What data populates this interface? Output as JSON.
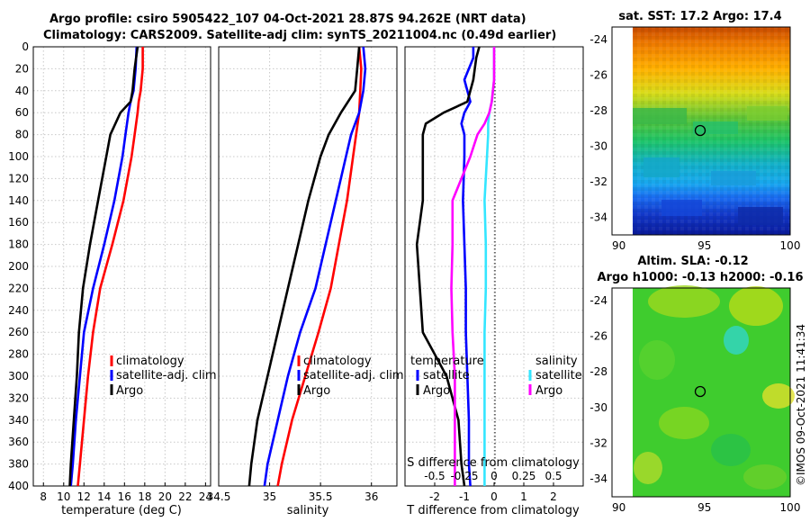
{
  "header": {
    "title_line1": "Argo profile: csiro 5905422_107 04-Oct-2021 28.87S 94.262E (NRT data)",
    "title_line2": "Climatology: CARS2009. Satellite-adj clim: synTS_20211004.nc (0.49d earlier)"
  },
  "watermark": "©IMOS 09-Oct-2021 11:41:34",
  "colors": {
    "climatology": "#ff0000",
    "satellite": "#0000ff",
    "argo": "#000000",
    "salinity_satellite": "#33e6ff",
    "salinity_argo": "#ff00ff"
  },
  "chart_data": [
    {
      "type": "line",
      "panel": "temperature",
      "xlabel": "temperature (deg C)",
      "xlim": [
        7,
        24.5
      ],
      "xticks": [
        "8",
        "10",
        "12",
        "14",
        "16",
        "18",
        "20",
        "22",
        "24"
      ],
      "ylim": [
        0,
        400
      ],
      "yticks": [
        "0",
        "20",
        "40",
        "60",
        "80",
        "100",
        "120",
        "140",
        "160",
        "180",
        "200",
        "220",
        "240",
        "260",
        "280",
        "300",
        "320",
        "340",
        "360",
        "380",
        "400"
      ],
      "depth": [
        0,
        20,
        40,
        50,
        60,
        80,
        100,
        140,
        180,
        220,
        260,
        300,
        340,
        380,
        400
      ],
      "series": [
        {
          "name": "climatology",
          "color": "#ff0000",
          "values": [
            17.8,
            17.8,
            17.6,
            17.4,
            17.3,
            17.0,
            16.7,
            15.9,
            14.8,
            13.6,
            12.9,
            12.4,
            12.0,
            11.6,
            11.4
          ]
        },
        {
          "name": "satellite-adj. clim",
          "color": "#0000ff",
          "values": [
            17.2,
            17.1,
            16.9,
            16.6,
            16.4,
            16.1,
            15.8,
            15.0,
            14.0,
            12.9,
            12.0,
            11.6,
            11.2,
            10.9,
            10.7
          ]
        },
        {
          "name": "Argo",
          "color": "#000000",
          "values": [
            17.3,
            17.0,
            16.8,
            16.6,
            15.6,
            14.6,
            14.2,
            13.4,
            12.6,
            11.9,
            11.5,
            11.3,
            11.0,
            10.7,
            10.6
          ]
        }
      ],
      "legend": [
        "climatology",
        "satellite-adj. clim",
        "Argo"
      ]
    },
    {
      "type": "line",
      "panel": "salinity",
      "xlabel": "salinity",
      "xlim": [
        34.5,
        36.25
      ],
      "xticks": [
        "34.5",
        "35",
        "35.5",
        "36"
      ],
      "depth": [
        0,
        20,
        40,
        60,
        80,
        100,
        140,
        180,
        220,
        260,
        300,
        340,
        380,
        400
      ],
      "series": [
        {
          "name": "climatology",
          "color": "#ff0000",
          "values": [
            35.88,
            35.9,
            35.89,
            35.88,
            35.85,
            35.82,
            35.76,
            35.68,
            35.6,
            35.48,
            35.35,
            35.22,
            35.12,
            35.08
          ]
        },
        {
          "name": "satellite-adj. clim",
          "color": "#0000ff",
          "values": [
            35.92,
            35.94,
            35.92,
            35.88,
            35.8,
            35.75,
            35.65,
            35.55,
            35.45,
            35.3,
            35.18,
            35.08,
            34.98,
            34.95
          ]
        },
        {
          "name": "Argo",
          "color": "#000000",
          "values": [
            35.88,
            35.86,
            35.84,
            35.7,
            35.58,
            35.5,
            35.38,
            35.28,
            35.18,
            35.08,
            34.98,
            34.88,
            34.82,
            34.8
          ]
        }
      ],
      "legend": [
        "climatology",
        "satellite-adj. clim",
        "Argo"
      ]
    },
    {
      "type": "line",
      "panel": "difference",
      "xlabel": "T difference from climatology",
      "x2label": "S difference from climatology",
      "xlim": [
        -3,
        3
      ],
      "xticks": [
        "-2",
        "-1",
        "0",
        "1",
        "2"
      ],
      "x2ticks": [
        "-0.5",
        "-0.25",
        "0",
        "0.25",
        "0.5"
      ],
      "depth": [
        0,
        10,
        30,
        50,
        60,
        70,
        80,
        100,
        140,
        180,
        220,
        260,
        300,
        340,
        380,
        400
      ],
      "series": [
        {
          "name": "temperature satellite",
          "color": "#0000ff",
          "values": [
            -0.7,
            -0.7,
            -1.0,
            -0.8,
            -1.0,
            -1.1,
            -1.0,
            -1.0,
            -1.05,
            -1.0,
            -0.95,
            -0.95,
            -0.9,
            -0.85,
            -0.85,
            -0.8
          ]
        },
        {
          "name": "temperature Argo",
          "color": "#000000",
          "values": [
            -0.5,
            -0.6,
            -0.7,
            -0.9,
            -1.7,
            -2.3,
            -2.4,
            -2.4,
            -2.4,
            -2.6,
            -2.5,
            -2.4,
            -1.6,
            -1.2,
            -1.1,
            -1.0
          ]
        },
        {
          "name": "salinity satellite",
          "color": "#33e6ff",
          "values": [
            0.0,
            0.0,
            0.0,
            -0.02,
            -0.04,
            -0.05,
            -0.05,
            -0.06,
            -0.08,
            -0.07,
            -0.07,
            -0.08,
            -0.08,
            -0.08,
            -0.08,
            -0.08
          ]
        },
        {
          "name": "salinity Argo",
          "color": "#ff00ff",
          "values": [
            0.0,
            0.0,
            0.0,
            -0.02,
            -0.04,
            -0.08,
            -0.14,
            -0.2,
            -0.35,
            -0.35,
            -0.36,
            -0.35,
            -0.33,
            -0.33,
            -0.33,
            -0.33
          ]
        }
      ],
      "legend_temperature": {
        "title": "temperature",
        "items": [
          "satellite",
          "Argo"
        ]
      },
      "legend_salinity": {
        "title": "salinity",
        "items": [
          "satellite",
          "Argo"
        ]
      }
    }
  ],
  "maps": {
    "sst": {
      "title": "sat. SST: 17.2 Argo: 17.4",
      "xticks": [
        "90",
        "95",
        "100"
      ],
      "yticks": [
        "-24",
        "-26",
        "-28",
        "-30",
        "-32",
        "-34"
      ],
      "lon_range": [
        89.6,
        100
      ],
      "lat_range": [
        -35,
        -23.3
      ],
      "marker": {
        "lon": 94.26,
        "lat": -28.87
      }
    },
    "sla": {
      "title_line1": "Altim. SLA: -0.12",
      "title_line2": "Argo h1000: -0.13 h2000: -0.16",
      "xticks": [
        "90",
        "95",
        "100"
      ],
      "yticks": [
        "-24",
        "-26",
        "-28",
        "-30",
        "-32",
        "-34"
      ],
      "lon_range": [
        89.6,
        100
      ],
      "lat_range": [
        -35,
        -23.3
      ],
      "marker": {
        "lon": 94.26,
        "lat": -28.87
      }
    }
  }
}
